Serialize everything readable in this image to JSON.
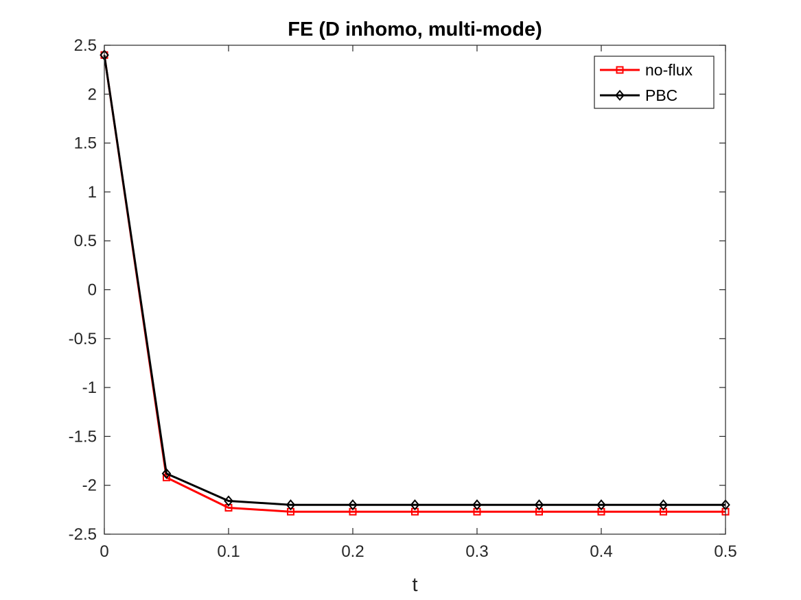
{
  "chart_data": {
    "type": "line",
    "title": "FE (D inhomo, multi-mode)",
    "xlabel": "t",
    "ylabel": "",
    "xlim": [
      0,
      0.5
    ],
    "ylim": [
      -2.5,
      2.5
    ],
    "xticks": [
      0,
      0.1,
      0.2,
      0.3,
      0.4,
      0.5
    ],
    "xtick_labels": [
      "0",
      "0.1",
      "0.2",
      "0.3",
      "0.4",
      "0.5"
    ],
    "yticks": [
      2.5,
      2,
      1.5,
      1,
      0.5,
      0,
      -0.5,
      -1,
      -1.5,
      -2,
      -2.5
    ],
    "ytick_labels": [
      "2.5",
      "2",
      "1.5",
      "1",
      "0.5",
      "0",
      "-0.5",
      "-1",
      "-1.5",
      "-2",
      "-2.5"
    ],
    "grid": false,
    "legend_position": "top-right",
    "x": [
      0,
      0.05,
      0.1,
      0.15,
      0.2,
      0.25,
      0.3,
      0.35,
      0.4,
      0.45,
      0.5
    ],
    "series": [
      {
        "name": "no-flux",
        "color": "#ff0000",
        "marker": "square",
        "values": [
          2.4,
          -1.92,
          -2.23,
          -2.27,
          -2.27,
          -2.27,
          -2.27,
          -2.27,
          -2.27,
          -2.27,
          -2.27
        ]
      },
      {
        "name": "PBC",
        "color": "#000000",
        "marker": "diamond",
        "values": [
          2.4,
          -1.88,
          -2.16,
          -2.2,
          -2.2,
          -2.2,
          -2.2,
          -2.2,
          -2.2,
          -2.2,
          -2.2
        ]
      }
    ]
  }
}
